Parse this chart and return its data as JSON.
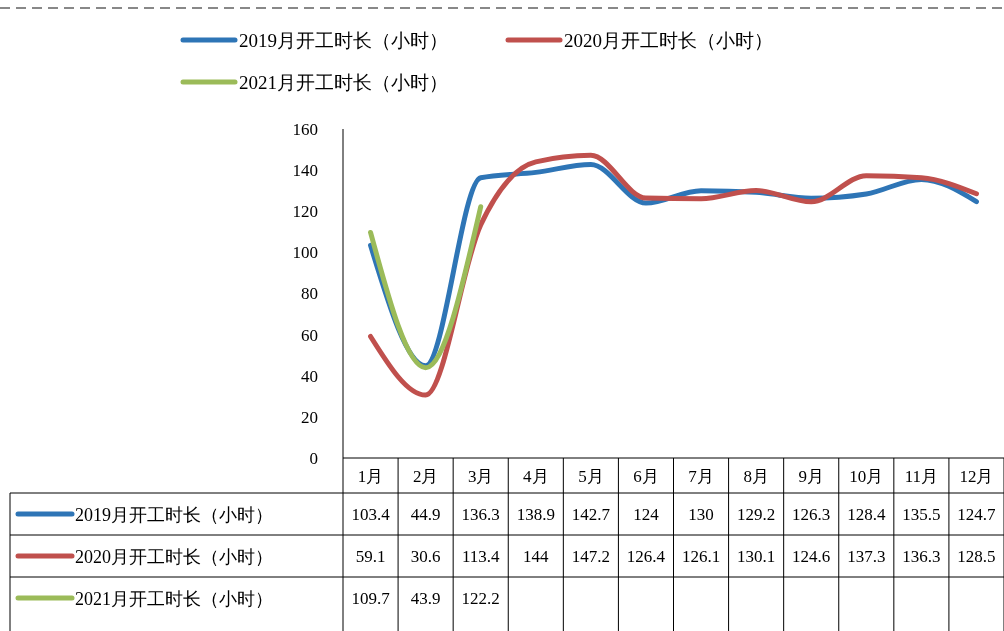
{
  "chart_data": {
    "type": "line",
    "categories": [
      "1月",
      "2月",
      "3月",
      "4月",
      "5月",
      "6月",
      "7月",
      "8月",
      "9月",
      "10月",
      "11月",
      "12月"
    ],
    "series": [
      {
        "name": "2019月开工时长（小时）",
        "color": "#2e75b6",
        "values": [
          103.4,
          44.9,
          136.3,
          138.9,
          142.7,
          124,
          130,
          129.2,
          126.3,
          128.4,
          135.5,
          124.7
        ]
      },
      {
        "name": "2020月开工时长（小时）",
        "color": "#c0504d",
        "values": [
          59.1,
          30.6,
          113.4,
          144,
          147.2,
          126.4,
          126.1,
          130.1,
          124.6,
          137.3,
          136.3,
          128.5
        ]
      },
      {
        "name": "2021月开工时长（小时）",
        "color": "#9bbb59",
        "values": [
          109.7,
          43.9,
          122.2,
          null,
          null,
          null,
          null,
          null,
          null,
          null,
          null,
          null
        ]
      }
    ],
    "ylim": [
      0,
      160
    ],
    "yticks": [
      0,
      20,
      40,
      60,
      80,
      100,
      120,
      140,
      160
    ],
    "grid": false,
    "legend": "top",
    "data_labels": true,
    "line_style": "solid"
  }
}
